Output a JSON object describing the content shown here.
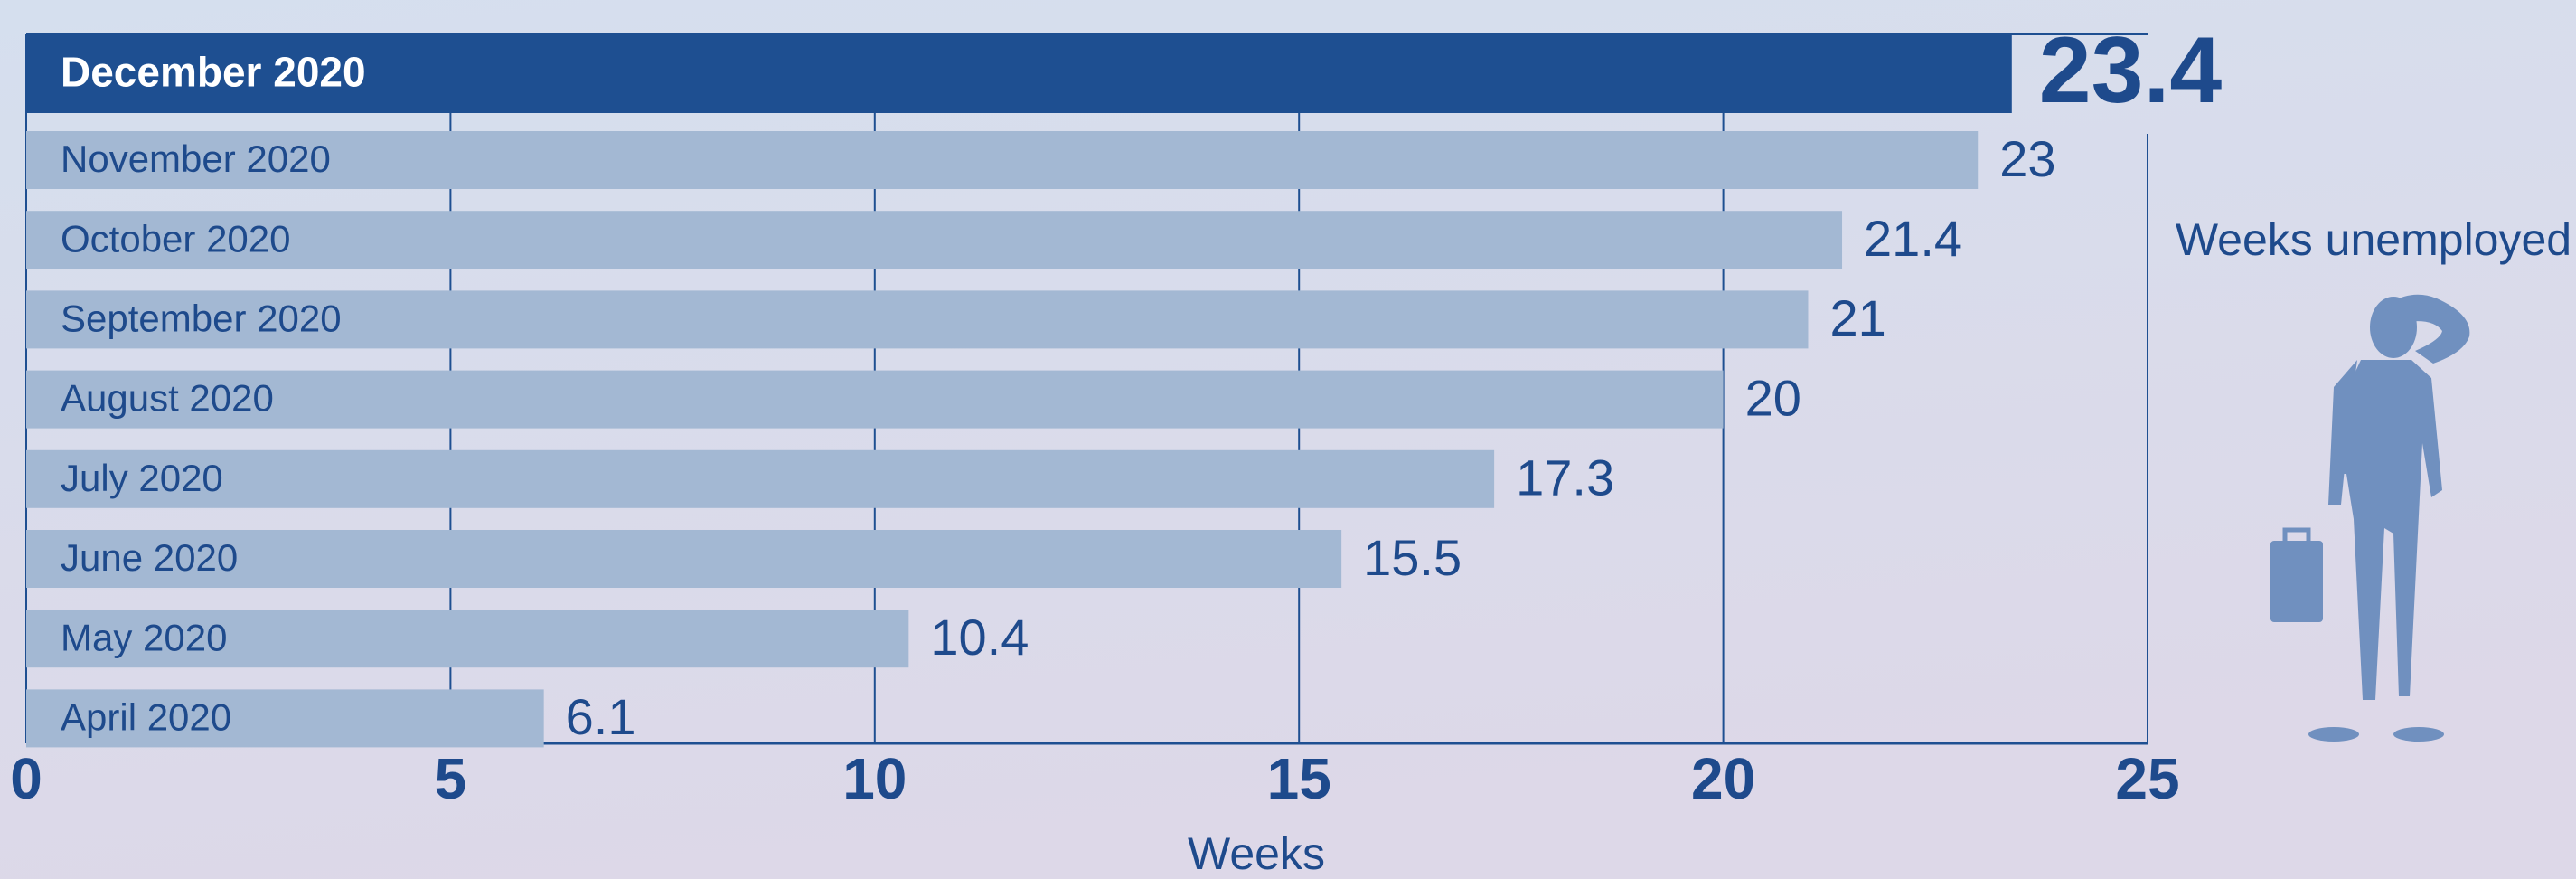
{
  "chart_data": {
    "type": "hbar",
    "categories": [
      "December 2020",
      "November 2020",
      "October 2020",
      "September 2020",
      "August 2020",
      "July 2020",
      "June 2020",
      "May 2020",
      "April 2020"
    ],
    "values": [
      23.4,
      23,
      21.4,
      21,
      20,
      17.3,
      15.5,
      10.4,
      6.1
    ],
    "colors": [
      "#1e4f91",
      "#a3b8d3",
      "#a3b8d3",
      "#a3b8d3",
      "#a3b8d3",
      "#a3b8d3",
      "#a3b8d3",
      "#a3b8d3",
      "#a3b8d3"
    ],
    "xlim": [
      0,
      25
    ],
    "xticks": [
      0,
      5,
      10,
      15,
      20,
      25
    ],
    "xlabel": "Weeks",
    "annotation": "Weeks unemployed",
    "grid": true
  }
}
